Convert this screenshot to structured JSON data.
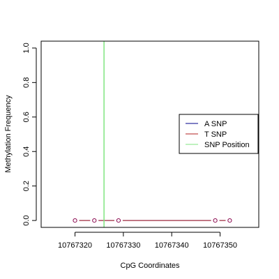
{
  "chart_data": {
    "type": "line",
    "title": "",
    "xlabel": "CpG Coordinates",
    "ylabel": "Methylation Frequency",
    "xlim": [
      10767313,
      10767358
    ],
    "ylim": [
      -0.04,
      1.04
    ],
    "x_ticks": [
      10767320,
      10767330,
      10767340,
      10767350
    ],
    "x_tick_labels": [
      "10767320",
      "10767330",
      "10767340",
      "10767350"
    ],
    "y_ticks": [
      0.0,
      0.2,
      0.4,
      0.6,
      0.8,
      1.0
    ],
    "y_tick_labels": [
      "0.0",
      "0.2",
      "0.4",
      "0.6",
      "0.8",
      "1.0"
    ],
    "grid": false,
    "legend_position": "right",
    "series": [
      {
        "name": "A SNP",
        "color": "#00008b",
        "x": [
          10767320,
          10767324,
          10767329,
          10767349,
          10767352
        ],
        "y": [
          0,
          0,
          0,
          0,
          0
        ]
      },
      {
        "name": "T SNP",
        "color": "#b22222",
        "x": [
          10767320,
          10767324,
          10767329,
          10767349,
          10767352
        ],
        "y": [
          0,
          0,
          0,
          0,
          0
        ]
      }
    ],
    "points": {
      "x": [
        10767320,
        10767324,
        10767329,
        10767349,
        10767352
      ],
      "y": [
        0,
        0,
        0,
        0,
        0
      ],
      "color": "#8b0a50"
    },
    "snp_position": {
      "name": "SNP Position",
      "x": 10767326,
      "color": "#7fe57f"
    }
  }
}
